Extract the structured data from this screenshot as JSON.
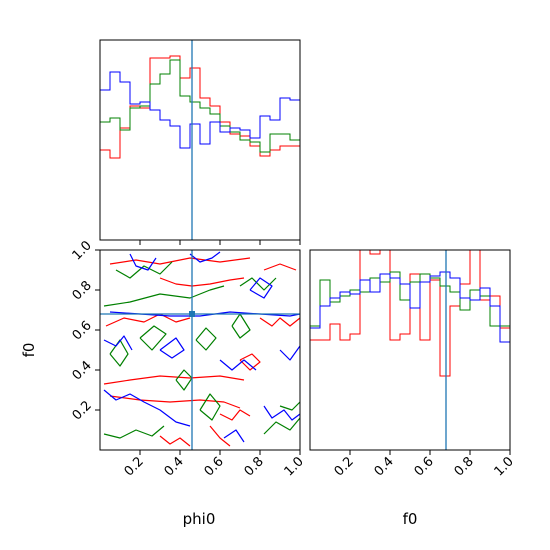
{
  "chart_data": {
    "type": "corner",
    "colors": {
      "red": "#ff0000",
      "green": "#008000",
      "blue": "#0000ff",
      "truth": "#1f77b4"
    },
    "params": [
      "phi0",
      "f0"
    ],
    "truth": {
      "phi0": 0.46,
      "f0": 0.68
    },
    "xlabels": [
      "phi0",
      "f0"
    ],
    "ylabel": "f0",
    "xlim": [
      0,
      1
    ],
    "ylim_2d": [
      0,
      1
    ],
    "ticks": [
      0.2,
      0.4,
      0.6,
      0.8,
      1.0
    ],
    "tick_labels": [
      "0.2",
      "0.4",
      "0.6",
      "0.8",
      "1.0"
    ],
    "hist_phi0": {
      "bin_edges": [
        0.0,
        0.05,
        0.1,
        0.15,
        0.2,
        0.25,
        0.3,
        0.35,
        0.4,
        0.45,
        0.5,
        0.55,
        0.6,
        0.65,
        0.7,
        0.75,
        0.8,
        0.85,
        0.9,
        0.95,
        1.0
      ],
      "ylim": [
        0,
        1.0
      ],
      "series": [
        {
          "name": "red",
          "values": [
            0.45,
            0.41,
            0.56,
            0.67,
            0.66,
            0.91,
            0.91,
            0.92,
            0.81,
            0.86,
            0.71,
            0.67,
            0.59,
            0.53,
            0.52,
            0.47,
            0.42,
            0.45,
            0.47,
            0.47
          ]
        },
        {
          "name": "green",
          "values": [
            0.59,
            0.61,
            0.55,
            0.66,
            0.67,
            0.78,
            0.83,
            0.9,
            0.72,
            0.69,
            0.66,
            0.63,
            0.57,
            0.54,
            0.5,
            0.49,
            0.44,
            0.53,
            0.53,
            0.5
          ]
        },
        {
          "name": "blue",
          "values": [
            0.75,
            0.84,
            0.79,
            0.68,
            0.69,
            0.65,
            0.6,
            0.57,
            0.46,
            0.58,
            0.48,
            0.59,
            0.54,
            0.56,
            0.55,
            0.51,
            0.62,
            0.6,
            0.71,
            0.7
          ]
        }
      ]
    },
    "hist_f0": {
      "bin_edges": [
        0.0,
        0.05,
        0.1,
        0.15,
        0.2,
        0.25,
        0.3,
        0.35,
        0.4,
        0.45,
        0.5,
        0.55,
        0.6,
        0.65,
        0.7,
        0.75,
        0.8,
        0.85,
        0.9,
        0.95,
        1.0
      ],
      "ylim": [
        0,
        1.0
      ],
      "series": [
        {
          "name": "red",
          "values": [
            0.55,
            0.55,
            0.63,
            0.55,
            0.58,
            1.05,
            0.98,
            1.05,
            0.55,
            0.58,
            0.88,
            0.55,
            0.85,
            0.37,
            0.72,
            0.83,
            1.05,
            0.75,
            0.77,
            0.61
          ]
        },
        {
          "name": "green",
          "values": [
            0.62,
            0.85,
            0.74,
            0.77,
            0.8,
            0.79,
            0.86,
            0.84,
            0.89,
            0.75,
            0.84,
            0.88,
            0.86,
            0.82,
            0.79,
            0.7,
            0.8,
            0.77,
            0.62,
            0.62
          ]
        },
        {
          "name": "blue",
          "values": [
            0.61,
            0.72,
            0.76,
            0.79,
            0.78,
            0.85,
            0.79,
            0.88,
            0.86,
            0.83,
            0.71,
            0.84,
            0.87,
            0.89,
            0.86,
            0.76,
            0.75,
            0.81,
            0.72,
            0.54
          ]
        }
      ]
    },
    "contours_2d": [
      {
        "color": "red",
        "paths": [
          [
            [
              0.02,
              0.33
            ],
            [
              0.15,
              0.35
            ],
            [
              0.3,
              0.37
            ],
            [
              0.45,
              0.36
            ],
            [
              0.6,
              0.37
            ],
            [
              0.72,
              0.35
            ]
          ],
          [
            [
              0.05,
              0.27
            ],
            [
              0.2,
              0.25
            ],
            [
              0.35,
              0.24
            ],
            [
              0.5,
              0.25
            ],
            [
              0.62,
              0.24
            ],
            [
              0.7,
              0.21
            ]
          ],
          [
            [
              0.3,
              0.86
            ],
            [
              0.38,
              0.83
            ],
            [
              0.46,
              0.82
            ],
            [
              0.55,
              0.83
            ],
            [
              0.65,
              0.85
            ],
            [
              0.72,
              0.86
            ]
          ],
          [
            [
              0.05,
              0.93
            ],
            [
              0.18,
              0.95
            ],
            [
              0.3,
              0.93
            ],
            [
              0.45,
              0.96
            ],
            [
              0.6,
              0.94
            ],
            [
              0.75,
              0.96
            ]
          ],
          [
            [
              0.03,
              0.62
            ],
            [
              0.12,
              0.66
            ],
            [
              0.22,
              0.64
            ],
            [
              0.3,
              0.68
            ],
            [
              0.38,
              0.64
            ],
            [
              0.45,
              0.66
            ]
          ],
          [
            [
              0.55,
              0.12
            ],
            [
              0.6,
              0.06
            ],
            [
              0.65,
              0.02
            ]
          ],
          [
            [
              0.3,
              0.07
            ],
            [
              0.35,
              0.03
            ],
            [
              0.4,
              0.06
            ],
            [
              0.45,
              0.02
            ]
          ],
          [
            [
              0.8,
              0.66
            ],
            [
              0.86,
              0.62
            ],
            [
              0.9,
              0.66
            ],
            [
              0.95,
              0.62
            ],
            [
              1.0,
              0.66
            ]
          ],
          [
            [
              0.6,
              0.18
            ],
            [
              0.66,
              0.15
            ],
            [
              0.7,
              0.2
            ],
            [
              0.75,
              0.17
            ]
          ],
          [
            [
              0.82,
              0.9
            ],
            [
              0.9,
              0.93
            ],
            [
              0.98,
              0.9
            ]
          ],
          [
            [
              0.7,
              0.45
            ],
            [
              0.75,
              0.4
            ],
            [
              0.8,
              0.44
            ],
            [
              0.76,
              0.48
            ],
            [
              0.7,
              0.45
            ]
          ]
        ]
      },
      {
        "color": "green",
        "paths": [
          [
            [
              0.02,
              0.72
            ],
            [
              0.15,
              0.74
            ],
            [
              0.3,
              0.78
            ],
            [
              0.45,
              0.76
            ],
            [
              0.55,
              0.8
            ],
            [
              0.62,
              0.82
            ]
          ],
          [
            [
              0.08,
              0.9
            ],
            [
              0.15,
              0.86
            ],
            [
              0.22,
              0.92
            ],
            [
              0.3,
              0.88
            ],
            [
              0.36,
              0.94
            ]
          ],
          [
            [
              0.05,
              0.48
            ],
            [
              0.1,
              0.42
            ],
            [
              0.14,
              0.48
            ],
            [
              0.1,
              0.55
            ],
            [
              0.05,
              0.48
            ]
          ],
          [
            [
              0.2,
              0.56
            ],
            [
              0.26,
              0.5
            ],
            [
              0.33,
              0.58
            ],
            [
              0.27,
              0.62
            ],
            [
              0.2,
              0.56
            ]
          ],
          [
            [
              0.48,
              0.55
            ],
            [
              0.53,
              0.5
            ],
            [
              0.58,
              0.56
            ],
            [
              0.53,
              0.61
            ],
            [
              0.48,
              0.55
            ]
          ],
          [
            [
              0.02,
              0.08
            ],
            [
              0.1,
              0.06
            ],
            [
              0.18,
              0.1
            ],
            [
              0.26,
              0.07
            ],
            [
              0.32,
              0.12
            ]
          ],
          [
            [
              0.5,
              0.2
            ],
            [
              0.56,
              0.15
            ],
            [
              0.6,
              0.22
            ],
            [
              0.55,
              0.28
            ],
            [
              0.5,
              0.2
            ]
          ],
          [
            [
              0.66,
              0.62
            ],
            [
              0.7,
              0.56
            ],
            [
              0.75,
              0.6
            ],
            [
              0.7,
              0.68
            ],
            [
              0.66,
              0.62
            ]
          ],
          [
            [
              0.82,
              0.08
            ],
            [
              0.88,
              0.14
            ],
            [
              0.95,
              0.1
            ],
            [
              1.0,
              0.16
            ]
          ],
          [
            [
              0.9,
              0.22
            ],
            [
              0.96,
              0.2
            ],
            [
              1.0,
              0.24
            ]
          ],
          [
            [
              0.7,
              0.82
            ],
            [
              0.76,
              0.86
            ],
            [
              0.82,
              0.8
            ],
            [
              0.88,
              0.86
            ]
          ],
          [
            [
              0.38,
              0.35
            ],
            [
              0.42,
              0.3
            ],
            [
              0.46,
              0.36
            ],
            [
              0.42,
              0.4
            ],
            [
              0.38,
              0.35
            ]
          ]
        ]
      },
      {
        "color": "blue",
        "paths": [
          [
            [
              0.05,
              0.69
            ],
            [
              0.2,
              0.68
            ],
            [
              0.35,
              0.67
            ],
            [
              0.5,
              0.67
            ],
            [
              0.65,
              0.69
            ],
            [
              0.8,
              0.68
            ],
            [
              0.95,
              0.67
            ],
            [
              1.0,
              0.68
            ]
          ],
          [
            [
              0.02,
              0.3
            ],
            [
              0.08,
              0.25
            ],
            [
              0.15,
              0.28
            ],
            [
              0.22,
              0.24
            ],
            [
              0.3,
              0.2
            ],
            [
              0.38,
              0.14
            ],
            [
              0.45,
              0.12
            ]
          ],
          [
            [
              0.15,
              0.98
            ],
            [
              0.18,
              0.92
            ],
            [
              0.24,
              0.9
            ],
            [
              0.28,
              0.96
            ]
          ],
          [
            [
              0.45,
              0.98
            ],
            [
              0.5,
              0.94
            ],
            [
              0.56,
              0.96
            ],
            [
              0.6,
              0.99
            ]
          ],
          [
            [
              0.6,
              0.45
            ],
            [
              0.66,
              0.4
            ],
            [
              0.72,
              0.45
            ],
            [
              0.78,
              0.4
            ]
          ],
          [
            [
              0.82,
              0.22
            ],
            [
              0.86,
              0.16
            ],
            [
              0.92,
              0.2
            ],
            [
              0.96,
              0.15
            ],
            [
              1.0,
              0.18
            ]
          ],
          [
            [
              0.75,
              0.8
            ],
            [
              0.8,
              0.86
            ],
            [
              0.86,
              0.82
            ],
            [
              0.82,
              0.76
            ],
            [
              0.75,
              0.8
            ]
          ],
          [
            [
              0.02,
              0.55
            ],
            [
              0.08,
              0.52
            ],
            [
              0.12,
              0.57
            ],
            [
              0.16,
              0.5
            ]
          ],
          [
            [
              0.3,
              0.5
            ],
            [
              0.36,
              0.46
            ],
            [
              0.42,
              0.5
            ],
            [
              0.38,
              0.56
            ],
            [
              0.3,
              0.5
            ]
          ],
          [
            [
              0.62,
              0.06
            ],
            [
              0.68,
              0.1
            ],
            [
              0.72,
              0.04
            ]
          ],
          [
            [
              0.9,
              0.5
            ],
            [
              0.95,
              0.45
            ],
            [
              1.0,
              0.52
            ]
          ]
        ]
      }
    ]
  }
}
